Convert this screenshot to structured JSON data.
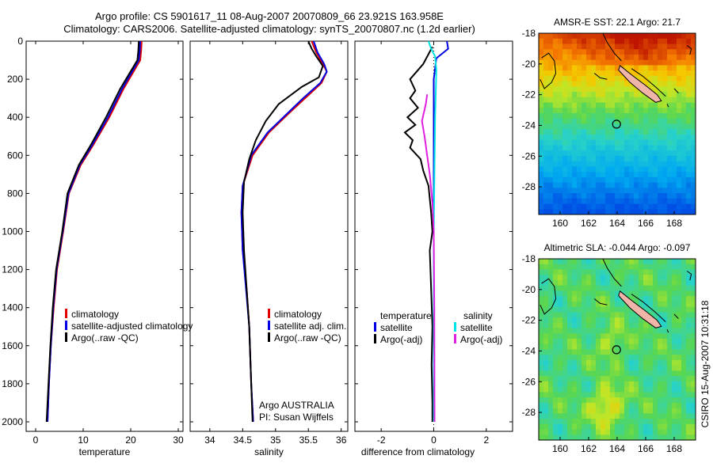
{
  "header": {
    "line1": "Argo profile: CS 5901617_11 08-Aug-2007 20070809_66 23.921S 163.958E",
    "line2": "Climatology: CARS2006. Satellite-adjusted climatology: synTS_20070807.nc (1.2d earlier)"
  },
  "side_text": "CSIRO 15-Aug-2007 10:31:18",
  "colors": {
    "clim": "#e00000",
    "sat": "#0000e0",
    "argo": "#000000",
    "sat_sal": "#00e5e5",
    "argo_sal": "#e020e0"
  },
  "chart_data": [
    {
      "type": "line",
      "id": "temperature",
      "xlabel": "temperature",
      "xlim": [
        -2,
        31
      ],
      "ylim": [
        0,
        2050
      ],
      "xticks": [
        0,
        10,
        20,
        30
      ],
      "yticks": [
        0,
        200,
        400,
        600,
        800,
        1000,
        1200,
        1400,
        1600,
        1800,
        2000
      ],
      "legend": [
        "climatology",
        "satellite-adjusted climatology",
        "Argo(..raw -QC)"
      ],
      "series": [
        {
          "key": "clim",
          "points": [
            [
              22.3,
              0
            ],
            [
              22.2,
              50
            ],
            [
              22.0,
              100
            ],
            [
              18.5,
              250
            ],
            [
              15.5,
              400
            ],
            [
              12.0,
              550
            ],
            [
              9.5,
              650
            ],
            [
              7.0,
              800
            ],
            [
              5.8,
              1000
            ],
            [
              4.5,
              1200
            ],
            [
              3.8,
              1400
            ],
            [
              3.2,
              1600
            ],
            [
              2.8,
              1800
            ],
            [
              2.5,
              2000
            ]
          ]
        },
        {
          "key": "sat",
          "points": [
            [
              22.0,
              0
            ],
            [
              21.9,
              50
            ],
            [
              21.7,
              100
            ],
            [
              18.2,
              250
            ],
            [
              15.2,
              400
            ],
            [
              11.8,
              550
            ],
            [
              9.3,
              650
            ],
            [
              6.9,
              800
            ],
            [
              5.7,
              1000
            ],
            [
              4.4,
              1200
            ],
            [
              3.7,
              1400
            ],
            [
              3.2,
              1600
            ],
            [
              2.8,
              1800
            ],
            [
              2.5,
              2000
            ]
          ]
        },
        {
          "key": "argo",
          "points": [
            [
              21.7,
              0
            ],
            [
              21.6,
              50
            ],
            [
              21.4,
              100
            ],
            [
              17.8,
              250
            ],
            [
              14.8,
              400
            ],
            [
              11.5,
              550
            ],
            [
              9.1,
              650
            ],
            [
              6.7,
              800
            ],
            [
              5.6,
              1000
            ],
            [
              4.3,
              1200
            ],
            [
              3.6,
              1400
            ],
            [
              3.1,
              1600
            ],
            [
              2.7,
              1800
            ],
            [
              2.3,
              2000
            ]
          ]
        }
      ]
    },
    {
      "type": "line",
      "id": "salinity",
      "xlabel": "salinity",
      "xlim": [
        33.7,
        36.1
      ],
      "ylim": [
        0,
        2050
      ],
      "xticks": [
        34,
        34.5,
        35,
        35.5,
        36
      ],
      "yticks": [
        0,
        200,
        400,
        600,
        800,
        1000,
        1200,
        1400,
        1600,
        1800,
        2000
      ],
      "legend": [
        "climatology",
        "satellite adj. clim.",
        "Argo(..raw -QC)"
      ],
      "note": [
        "Argo AUSTRALIA",
        "PI: Susan Wijffels"
      ],
      "series": [
        {
          "key": "clim",
          "points": [
            [
              35.55,
              0
            ],
            [
              35.62,
              60
            ],
            [
              35.72,
              120
            ],
            [
              35.78,
              160
            ],
            [
              35.7,
              220
            ],
            [
              35.45,
              300
            ],
            [
              35.2,
              380
            ],
            [
              34.9,
              480
            ],
            [
              34.65,
              600
            ],
            [
              34.5,
              760
            ],
            [
              34.48,
              900
            ],
            [
              34.5,
              1100
            ],
            [
              34.56,
              1300
            ],
            [
              34.6,
              1500
            ],
            [
              34.63,
              1800
            ],
            [
              34.66,
              2000
            ]
          ]
        },
        {
          "key": "sat",
          "points": [
            [
              35.58,
              0
            ],
            [
              35.64,
              60
            ],
            [
              35.74,
              120
            ],
            [
              35.78,
              160
            ],
            [
              35.68,
              220
            ],
            [
              35.42,
              300
            ],
            [
              35.18,
              380
            ],
            [
              34.88,
              480
            ],
            [
              34.63,
              600
            ],
            [
              34.5,
              760
            ],
            [
              34.48,
              900
            ],
            [
              34.5,
              1100
            ],
            [
              34.55,
              1300
            ],
            [
              34.6,
              1500
            ],
            [
              34.63,
              1800
            ],
            [
              34.66,
              2000
            ]
          ]
        },
        {
          "key": "argo",
          "points": [
            [
              35.5,
              0
            ],
            [
              35.55,
              40
            ],
            [
              35.62,
              80
            ],
            [
              35.72,
              130
            ],
            [
              35.66,
              190
            ],
            [
              35.4,
              240
            ],
            [
              35.05,
              330
            ],
            [
              34.85,
              420
            ],
            [
              34.7,
              520
            ],
            [
              34.6,
              620
            ],
            [
              34.52,
              740
            ],
            [
              34.5,
              900
            ],
            [
              34.52,
              1100
            ],
            [
              34.56,
              1300
            ],
            [
              34.6,
              1500
            ],
            [
              34.63,
              1800
            ],
            [
              34.65,
              2000
            ]
          ]
        }
      ]
    },
    {
      "type": "line",
      "id": "difference",
      "xlabel": "difference from climatology",
      "xlim": [
        -3,
        3
      ],
      "ylim": [
        0,
        2050
      ],
      "xticks": [
        -2,
        0,
        2
      ],
      "yticks": [
        0,
        200,
        400,
        600,
        800,
        1000,
        1200,
        1400,
        1600,
        1800,
        2000
      ],
      "legend_left": [
        "temperature",
        "satellite",
        "Argo(-adj)"
      ],
      "legend_right": [
        "salinity",
        "satellite",
        "Argo(-adj)"
      ],
      "series": [
        {
          "key": "sat",
          "points": [
            [
              0.5,
              0
            ],
            [
              0.55,
              40
            ],
            [
              0.1,
              90
            ],
            [
              0.0,
              200
            ],
            [
              0.0,
              600
            ],
            [
              0.0,
              2000
            ]
          ]
        },
        {
          "key": "argo",
          "points": [
            [
              -0.05,
              30
            ],
            [
              -0.4,
              120
            ],
            [
              -0.9,
              200
            ],
            [
              -0.7,
              260
            ],
            [
              -0.9,
              300
            ],
            [
              -0.6,
              350
            ],
            [
              -1.0,
              400
            ],
            [
              -0.7,
              440
            ],
            [
              -1.1,
              480
            ],
            [
              -0.8,
              520
            ],
            [
              -0.9,
              560
            ],
            [
              -0.5,
              620
            ],
            [
              -0.4,
              680
            ],
            [
              -0.2,
              760
            ],
            [
              -0.1,
              900
            ],
            [
              -0.05,
              1000
            ],
            [
              -0.15,
              1100
            ],
            [
              -0.1,
              1300
            ],
            [
              -0.05,
              1500
            ],
            [
              -0.08,
              1700
            ],
            [
              -0.05,
              1900
            ],
            [
              -0.05,
              2000
            ]
          ]
        },
        {
          "key": "sat_sal",
          "points": [
            [
              -0.2,
              0
            ],
            [
              -0.1,
              40
            ],
            [
              0.05,
              80
            ],
            [
              0.1,
              150
            ],
            [
              0.05,
              400
            ],
            [
              0.0,
              1000
            ],
            [
              0.0,
              2000
            ]
          ]
        },
        {
          "key": "argo_sal",
          "points": [
            [
              -0.25,
              280
            ],
            [
              -0.3,
              330
            ],
            [
              -0.45,
              420
            ],
            [
              -0.35,
              500
            ],
            [
              -0.25,
              600
            ],
            [
              -0.15,
              700
            ],
            [
              -0.05,
              850
            ],
            [
              0.0,
              1000
            ],
            [
              0.02,
              1400
            ],
            [
              0.03,
              2000
            ]
          ]
        }
      ]
    },
    {
      "type": "heatmap",
      "id": "sst_map",
      "title": "AMSR-E SST: 22.1 Argo: 21.7",
      "xlim": [
        158.5,
        169.5
      ],
      "ylim": [
        -29.8,
        -18
      ],
      "xticks": [
        160,
        162,
        164,
        166,
        168
      ],
      "yticks": [
        -18,
        -20,
        -22,
        -24,
        -26,
        -28
      ],
      "marker": [
        163.958,
        -23.921
      ]
    },
    {
      "type": "heatmap",
      "id": "sla_map",
      "title": "Altimetric SLA: -0.044 Argo: -0.097",
      "xlim": [
        158.5,
        169.5
      ],
      "ylim": [
        -29.8,
        -18
      ],
      "xticks": [
        160,
        162,
        164,
        166,
        168
      ],
      "yticks": [
        -18,
        -20,
        -22,
        -24,
        -26,
        -28
      ],
      "marker": [
        163.958,
        -23.921
      ]
    }
  ]
}
